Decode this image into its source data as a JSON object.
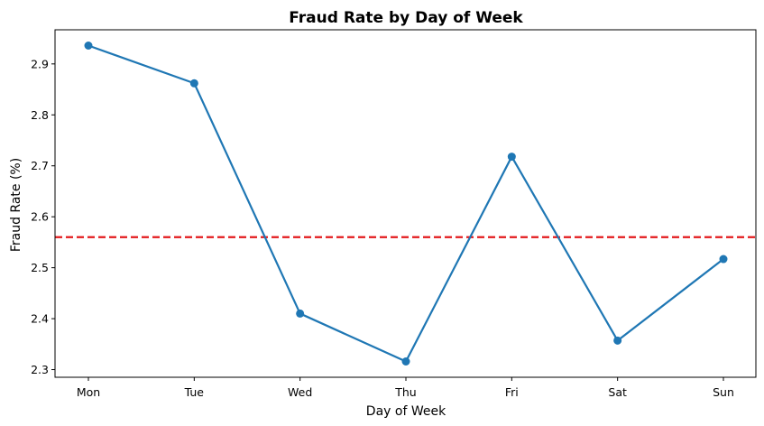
{
  "chart_data": {
    "type": "line",
    "title": "Fraud Rate by Day of Week",
    "xlabel": "Day of Week",
    "ylabel": "Fraud Rate (%)",
    "categories": [
      "Mon",
      "Tue",
      "Wed",
      "Thu",
      "Fri",
      "Sat",
      "Sun"
    ],
    "series": [
      {
        "values": [
          2.936,
          2.862,
          2.41,
          2.316,
          2.718,
          2.357,
          2.517
        ],
        "color": "#1f77b4"
      }
    ],
    "reference_line": {
      "y": 2.56,
      "color": "#e31a1c",
      "style": "dashed"
    },
    "ylim": [
      2.285,
      2.967
    ],
    "yticks": [
      2.3,
      2.4,
      2.5,
      2.6,
      2.7,
      2.8,
      2.9
    ],
    "ytick_labels": [
      "2.3",
      "2.4",
      "2.5",
      "2.6",
      "2.7",
      "2.8",
      "2.9"
    ],
    "grid": false,
    "legend": "none"
  }
}
